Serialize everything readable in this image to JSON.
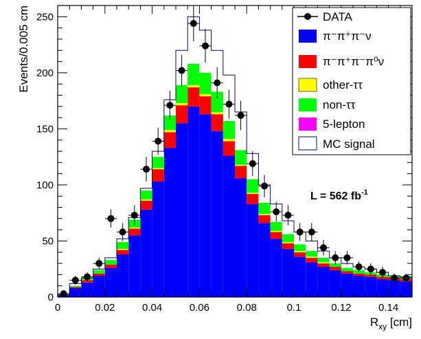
{
  "chart_data": {
    "type": "bar",
    "subtype": "stacked-histogram",
    "xlabel_main": "R",
    "xlabel_sub": "xy",
    "xlabel_unit": " [cm]",
    "ylabel": "Events/0.005 cm",
    "xlim": [
      0,
      0.15
    ],
    "ylim": [
      0,
      260
    ],
    "x_ticks": [
      0,
      0.02,
      0.04,
      0.06,
      0.08,
      0.1,
      0.12,
      0.14
    ],
    "x_tick_labels": [
      "0",
      "0.02",
      "0.04",
      "0.06",
      "0.08",
      "0.1",
      "0.12",
      "0.14"
    ],
    "y_ticks": [
      0,
      50,
      100,
      150,
      200,
      250
    ],
    "y_tick_labels": [
      "0",
      "50",
      "100",
      "150",
      "200",
      "250"
    ],
    "bin_width": 0.005,
    "bin_edges_start": [
      0,
      0.005,
      0.01,
      0.015,
      0.02,
      0.025,
      0.03,
      0.035,
      0.04,
      0.045,
      0.05,
      0.055,
      0.06,
      0.065,
      0.07,
      0.075,
      0.08,
      0.085,
      0.09,
      0.095,
      0.1,
      0.105,
      0.11,
      0.115,
      0.12,
      0.125,
      0.13,
      0.135,
      0.14,
      0.145
    ],
    "series": [
      {
        "name": "π⁻π⁺π⁻ν",
        "color": "#0000ff",
        "values": [
          2,
          8,
          13,
          19,
          26,
          38,
          55,
          78,
          103,
          133,
          155,
          170,
          163,
          148,
          126,
          106,
          83,
          66,
          52,
          43,
          36,
          31,
          27,
          24,
          21,
          19,
          18,
          16,
          15,
          14
        ]
      },
      {
        "name": "π⁻π⁺π⁻π⁰ν",
        "color": "#ff0000",
        "values": [
          0,
          1,
          2,
          2,
          3,
          4,
          6,
          8,
          11,
          14,
          16,
          17,
          16,
          15,
          13,
          11,
          9,
          7,
          6,
          5,
          4,
          4,
          3,
          3,
          2,
          2,
          2,
          2,
          2,
          2
        ]
      },
      {
        "name": "other-ττ",
        "color": "#ffff00",
        "values": [
          0,
          0,
          0,
          0,
          0,
          1,
          1,
          1,
          1,
          2,
          2,
          2,
          2,
          2,
          2,
          1,
          1,
          1,
          1,
          1,
          1,
          1,
          1,
          0,
          0,
          0,
          0,
          0,
          0,
          0
        ]
      },
      {
        "name": "non-ττ",
        "color": "#00ff00",
        "values": [
          0,
          1,
          2,
          3,
          4,
          6,
          7,
          8,
          10,
          13,
          16,
          19,
          19,
          18,
          16,
          13,
          12,
          10,
          8,
          7,
          6,
          5,
          4,
          3,
          3,
          3,
          2,
          2,
          2,
          2
        ]
      },
      {
        "name": "5-lepton",
        "color": "#ff00ff",
        "values": [
          0,
          0,
          0,
          0,
          0,
          0,
          0,
          0,
          0,
          0,
          0,
          0,
          0,
          0,
          0,
          0,
          0,
          0,
          0,
          0,
          0,
          0,
          0,
          0,
          0,
          0,
          0,
          0,
          0,
          0
        ]
      }
    ],
    "mc_signal": {
      "name": "MC signal",
      "color": "#000080",
      "values": [
        2,
        12,
        17,
        25,
        35,
        52,
        71,
        97,
        130,
        176,
        220,
        250,
        238,
        220,
        198,
        165,
        128,
        100,
        83,
        68,
        58,
        50,
        41,
        35,
        30,
        27,
        25,
        22,
        19,
        18
      ]
    },
    "data": {
      "name": "DATA",
      "color": "#000000",
      "values": [
        3,
        15,
        18,
        30,
        70,
        58,
        73,
        114,
        139,
        171,
        202,
        244,
        224,
        191,
        172,
        162,
        119,
        99,
        76,
        73,
        58,
        58,
        44,
        35,
        35,
        27,
        25,
        22,
        17,
        17
      ],
      "errors": [
        2,
        4,
        4,
        5,
        8,
        8,
        9,
        11,
        12,
        13,
        14,
        16,
        15,
        14,
        13,
        13,
        11,
        10,
        9,
        9,
        8,
        8,
        7,
        6,
        6,
        5,
        5,
        5,
        4,
        4
      ]
    },
    "legend_entries": [
      "DATA",
      "π⁻π⁺π⁻ν",
      "π⁻π⁺π⁻π⁰ν",
      "other-ττ",
      "non-ττ",
      "5-lepton",
      "MC signal"
    ],
    "legend_placement": "top-right",
    "annotation": {
      "text_main": "L = 562 fb",
      "text_sup": "-1"
    },
    "grid": false
  }
}
